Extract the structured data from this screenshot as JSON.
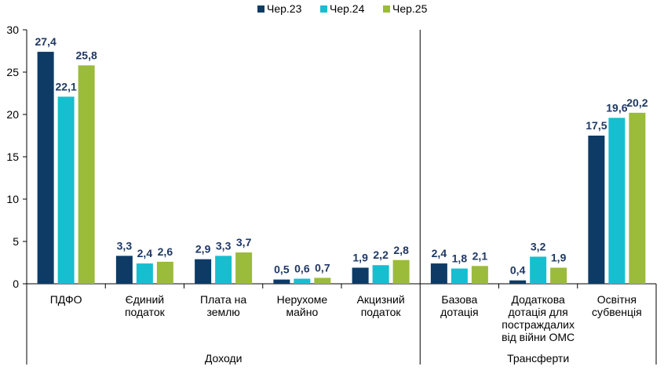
{
  "chart_data": {
    "type": "bar",
    "ylim": [
      0,
      30
    ],
    "yticks": [
      "0",
      "5",
      "10",
      "15",
      "20",
      "25",
      "30"
    ],
    "legend_position": "top-center",
    "grid": false,
    "series": [
      {
        "name": "Чер.23",
        "color": "#0d3b66",
        "values": [
          27.4,
          3.3,
          2.9,
          0.5,
          1.9,
          2.4,
          0.4,
          17.5
        ],
        "labels": [
          "27,4",
          "3,3",
          "2,9",
          "0,5",
          "1,9",
          "2,4",
          "0,4",
          "17,5"
        ]
      },
      {
        "name": "Чер.24",
        "color": "#17becf",
        "values": [
          22.1,
          2.4,
          3.3,
          0.6,
          2.2,
          1.8,
          3.2,
          19.6
        ],
        "labels": [
          "22,1",
          "2,4",
          "3,3",
          "0,6",
          "2,2",
          "1,8",
          "3,2",
          "19,6"
        ]
      },
      {
        "name": "Чер.25",
        "color": "#9bbb3b",
        "values": [
          25.8,
          2.6,
          3.7,
          0.7,
          2.8,
          2.1,
          1.9,
          20.2
        ],
        "labels": [
          "25,8",
          "2,6",
          "3,7",
          "0,7",
          "2,8",
          "2,1",
          "1,9",
          "20,2"
        ]
      }
    ],
    "categories": [
      [
        "ПДФО"
      ],
      [
        "Єдиний",
        "податок"
      ],
      [
        "Плата на",
        "землю"
      ],
      [
        "Нерухоме",
        "майно"
      ],
      [
        "Акцизний",
        "податок"
      ],
      [
        "Базова",
        "дотація"
      ],
      [
        "Додаткова",
        "дотація для",
        "постраждалих",
        "від війни ОМС"
      ],
      [
        "Освітня",
        "субвенція"
      ]
    ],
    "groups": [
      {
        "label": "Доходи",
        "categories": 5
      },
      {
        "label": "Трансферти",
        "categories": 3
      }
    ]
  }
}
